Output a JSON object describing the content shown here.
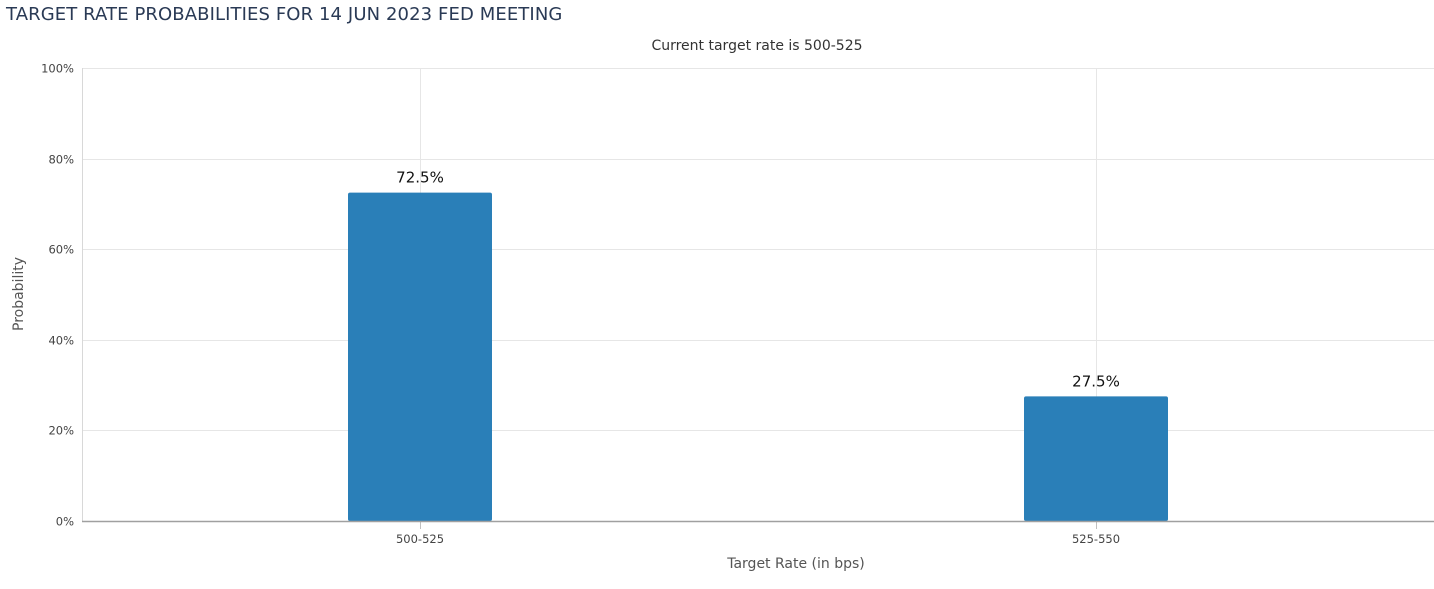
{
  "page": {
    "title": "TARGET RATE PROBABILITIES FOR 14 JUN 2023 FED MEETING"
  },
  "chart_data": {
    "type": "bar",
    "title": "",
    "subtitle": "Current target rate is 500-525",
    "xlabel": "Target Rate (in bps)",
    "ylabel": "Probability",
    "categories": [
      "500-525",
      "525-550"
    ],
    "values": [
      72.5,
      27.5
    ],
    "data_labels": [
      "72.5%",
      "27.5%"
    ],
    "value_suffix": "%",
    "ylim": [
      0,
      100
    ],
    "yticks": [
      0,
      20,
      40,
      60,
      80,
      100
    ],
    "ytick_labels": [
      "0%",
      "20%",
      "40%",
      "60%",
      "80%",
      "100%"
    ],
    "grid": true,
    "legend": "none",
    "bar_color": "#2a7fb8"
  }
}
